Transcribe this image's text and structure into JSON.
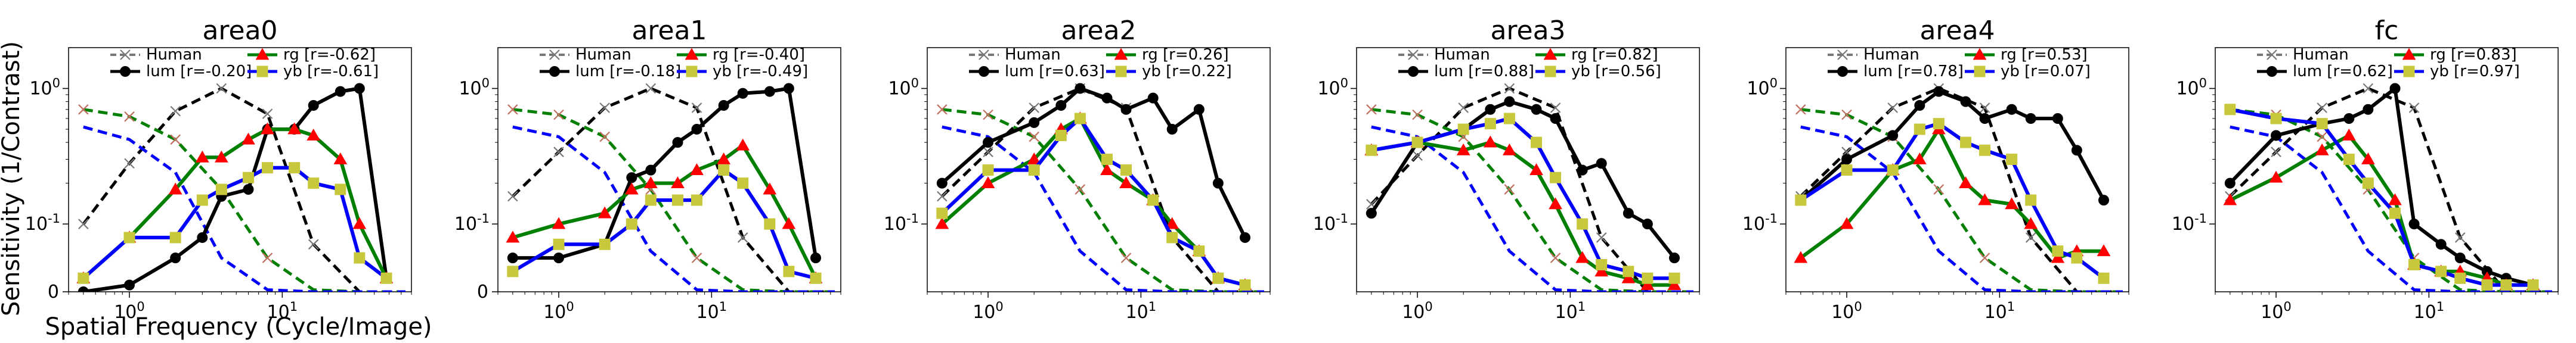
{
  "figure": {
    "ylabel": "Sensitivity (1/Contrast)",
    "xlabel": "Spatial Frequency (Cycle/Image)",
    "colors": {
      "human": "#777777",
      "lum": "#000000",
      "rg": "#007f00",
      "yb": "#0000ff",
      "rg_marker": "#ff0000",
      "yb_marker": "#c8c83c"
    }
  },
  "chart_data": [
    {
      "type": "line",
      "title": "area0",
      "xscale": "log",
      "yscale": "symlog",
      "xlim": [
        0.4,
        70
      ],
      "ylim": [
        0,
        2
      ],
      "x_ticks": [
        "10^0",
        "10^1"
      ],
      "y_ticks": [
        "0",
        "10^-1",
        "10^0"
      ],
      "legend": {
        "placement": "top",
        "entries": [
          "Human",
          "lum [r=-0.20]",
          "rg [r=-0.62]",
          "yb [r=-0.61]"
        ]
      },
      "human": {
        "x": [
          0.5,
          1,
          2,
          4,
          8,
          16,
          32,
          64
        ],
        "lum": [
          0.1,
          0.28,
          0.68,
          1.0,
          0.65,
          0.07,
          0.0,
          0.0
        ],
        "rg": [
          0.7,
          0.62,
          0.42,
          0.18,
          0.05,
          0.003,
          0.0,
          0.0
        ],
        "yb": [
          0.52,
          0.42,
          0.24,
          0.05,
          0.003,
          0.0,
          0.0,
          0.0
        ]
      },
      "series": [
        {
          "name": "lum",
          "x": [
            0.5,
            1,
            2,
            3,
            4,
            6,
            8,
            12,
            16,
            24,
            32,
            48
          ],
          "y": [
            0.0,
            0.01,
            0.05,
            0.08,
            0.16,
            0.18,
            0.5,
            0.5,
            0.75,
            0.95,
            1.0,
            0.02
          ]
        },
        {
          "name": "rg",
          "x": [
            0.5,
            1,
            2,
            3,
            4,
            6,
            8,
            12,
            16,
            24,
            32,
            48
          ],
          "y": [
            0.02,
            0.08,
            0.18,
            0.31,
            0.31,
            0.42,
            0.5,
            0.5,
            0.45,
            0.3,
            0.1,
            0.02
          ]
        },
        {
          "name": "yb",
          "x": [
            0.5,
            1,
            2,
            3,
            4,
            6,
            8,
            12,
            16,
            24,
            32,
            48
          ],
          "y": [
            0.02,
            0.08,
            0.08,
            0.15,
            0.18,
            0.22,
            0.26,
            0.26,
            0.2,
            0.18,
            0.05,
            0.02
          ]
        }
      ]
    },
    {
      "type": "line",
      "title": "area1",
      "xscale": "log",
      "yscale": "symlog",
      "xlim": [
        0.4,
        70
      ],
      "ylim": [
        0,
        2
      ],
      "x_ticks": [
        "10^0",
        "10^1"
      ],
      "y_ticks": [
        "0",
        "10^-1",
        "10^0"
      ],
      "legend": {
        "placement": "top",
        "entries": [
          "Human",
          "lum [r=-0.18]",
          "rg [r=-0.40]",
          "yb [r=-0.49]"
        ]
      },
      "human": {
        "x": [
          0.5,
          1,
          2,
          4,
          8,
          16,
          32,
          64
        ],
        "lum": [
          0.16,
          0.34,
          0.72,
          1.0,
          0.72,
          0.08,
          0.0,
          0.0
        ],
        "rg": [
          0.7,
          0.64,
          0.44,
          0.18,
          0.05,
          0.003,
          0.0,
          0.0
        ],
        "yb": [
          0.52,
          0.44,
          0.24,
          0.06,
          0.003,
          0.0,
          0.0,
          0.0
        ]
      },
      "series": [
        {
          "name": "lum",
          "x": [
            0.5,
            1,
            2,
            3,
            4,
            6,
            8,
            12,
            16,
            24,
            32,
            48
          ],
          "y": [
            0.05,
            0.05,
            0.07,
            0.22,
            0.25,
            0.4,
            0.5,
            0.75,
            0.92,
            0.95,
            1.0,
            0.05
          ]
        },
        {
          "name": "rg",
          "x": [
            0.5,
            1,
            2,
            3,
            4,
            6,
            8,
            12,
            16,
            24,
            32,
            48
          ],
          "y": [
            0.08,
            0.1,
            0.12,
            0.18,
            0.2,
            0.2,
            0.25,
            0.3,
            0.38,
            0.18,
            0.1,
            0.02
          ]
        },
        {
          "name": "yb",
          "x": [
            0.5,
            1,
            2,
            3,
            4,
            6,
            8,
            12,
            16,
            24,
            32,
            48
          ],
          "y": [
            0.03,
            0.07,
            0.07,
            0.1,
            0.15,
            0.15,
            0.15,
            0.25,
            0.2,
            0.1,
            0.03,
            0.02
          ]
        }
      ]
    },
    {
      "type": "line",
      "title": "area2",
      "xscale": "log",
      "yscale": "symlog",
      "xlim": [
        0.4,
        70
      ],
      "ylim": [
        0,
        2
      ],
      "x_ticks": [
        "10^0",
        "10^1"
      ],
      "y_ticks": [
        "10^-1",
        "10^0"
      ],
      "legend": {
        "placement": "top",
        "entries": [
          "Human",
          "lum [r=0.63]",
          "rg [r=0.26]",
          "yb [r=0.22]"
        ]
      },
      "human": {
        "x": [
          0.5,
          1,
          2,
          4,
          8,
          16,
          32,
          64
        ],
        "lum": [
          0.16,
          0.34,
          0.72,
          1.0,
          0.72,
          0.08,
          0.0,
          0.0
        ],
        "rg": [
          0.7,
          0.64,
          0.44,
          0.18,
          0.05,
          0.003,
          0.0,
          0.0
        ],
        "yb": [
          0.52,
          0.44,
          0.24,
          0.06,
          0.003,
          0.0,
          0.0,
          0.0
        ]
      },
      "series": [
        {
          "name": "lum",
          "x": [
            0.5,
            1,
            2,
            3,
            4,
            6,
            8,
            12,
            16,
            24,
            32,
            48
          ],
          "y": [
            0.2,
            0.4,
            0.56,
            0.75,
            1.0,
            0.85,
            0.7,
            0.85,
            0.5,
            0.7,
            0.2,
            0.08
          ]
        },
        {
          "name": "rg",
          "x": [
            0.5,
            1,
            2,
            3,
            4,
            6,
            8,
            12,
            16,
            24,
            32,
            48
          ],
          "y": [
            0.1,
            0.2,
            0.3,
            0.5,
            0.6,
            0.25,
            0.2,
            0.15,
            0.1,
            0.06,
            0.02,
            0.01
          ]
        },
        {
          "name": "yb",
          "x": [
            0.5,
            1,
            2,
            3,
            4,
            6,
            8,
            12,
            16,
            24,
            32,
            48
          ],
          "y": [
            0.12,
            0.25,
            0.25,
            0.45,
            0.6,
            0.3,
            0.25,
            0.15,
            0.08,
            0.06,
            0.02,
            0.01
          ]
        }
      ]
    },
    {
      "type": "line",
      "title": "area3",
      "xscale": "log",
      "yscale": "symlog",
      "xlim": [
        0.4,
        70
      ],
      "ylim": [
        0,
        2
      ],
      "x_ticks": [
        "10^0",
        "10^1"
      ],
      "y_ticks": [
        "10^-1",
        "10^0"
      ],
      "legend": {
        "placement": "top",
        "entries": [
          "Human",
          "lum [r=0.88]",
          "rg [r=0.82]",
          "yb [r=0.56]"
        ]
      },
      "human": {
        "x": [
          0.5,
          1,
          2,
          4,
          8,
          16,
          32,
          64
        ],
        "lum": [
          0.14,
          0.32,
          0.72,
          1.0,
          0.72,
          0.08,
          0.0,
          0.0
        ],
        "rg": [
          0.7,
          0.64,
          0.44,
          0.18,
          0.05,
          0.003,
          0.0,
          0.0
        ],
        "yb": [
          0.52,
          0.44,
          0.24,
          0.06,
          0.003,
          0.0,
          0.0,
          0.0
        ]
      },
      "series": [
        {
          "name": "lum",
          "x": [
            0.5,
            1,
            2,
            3,
            4,
            6,
            8,
            12,
            16,
            24,
            32,
            48
          ],
          "y": [
            0.12,
            0.4,
            0.5,
            0.7,
            0.8,
            0.7,
            0.6,
            0.25,
            0.28,
            0.12,
            0.1,
            0.05
          ]
        },
        {
          "name": "rg",
          "x": [
            0.5,
            1,
            2,
            3,
            4,
            6,
            8,
            12,
            16,
            24,
            32,
            48
          ],
          "y": [
            0.35,
            0.4,
            0.35,
            0.4,
            0.35,
            0.25,
            0.14,
            0.05,
            0.03,
            0.02,
            0.01,
            0.01
          ]
        },
        {
          "name": "yb",
          "x": [
            0.5,
            1,
            2,
            3,
            4,
            6,
            8,
            12,
            16,
            24,
            32,
            48
          ],
          "y": [
            0.35,
            0.4,
            0.5,
            0.55,
            0.6,
            0.4,
            0.22,
            0.1,
            0.04,
            0.03,
            0.02,
            0.02
          ]
        }
      ]
    },
    {
      "type": "line",
      "title": "area4",
      "xscale": "log",
      "yscale": "symlog",
      "xlim": [
        0.4,
        70
      ],
      "ylim": [
        0,
        2
      ],
      "x_ticks": [
        "10^0",
        "10^1"
      ],
      "y_ticks": [
        "10^-1",
        "10^0"
      ],
      "legend": {
        "placement": "top",
        "entries": [
          "Human",
          "lum [r=0.78]",
          "rg [r=0.53]",
          "yb [r=0.07]"
        ]
      },
      "human": {
        "x": [
          0.5,
          1,
          2,
          4,
          8,
          16,
          32,
          64
        ],
        "lum": [
          0.16,
          0.34,
          0.72,
          1.0,
          0.72,
          0.08,
          0.0,
          0.0
        ],
        "rg": [
          0.7,
          0.64,
          0.44,
          0.18,
          0.05,
          0.003,
          0.0,
          0.0
        ],
        "yb": [
          0.52,
          0.44,
          0.24,
          0.06,
          0.003,
          0.0,
          0.0,
          0.0
        ]
      },
      "series": [
        {
          "name": "lum",
          "x": [
            0.5,
            1,
            2,
            3,
            4,
            6,
            8,
            12,
            16,
            24,
            32,
            48
          ],
          "y": [
            0.15,
            0.3,
            0.45,
            0.75,
            0.95,
            0.8,
            0.6,
            0.7,
            0.6,
            0.6,
            0.35,
            0.15
          ]
        },
        {
          "name": "rg",
          "x": [
            0.5,
            1,
            2,
            3,
            4,
            6,
            8,
            12,
            16,
            24,
            32,
            48
          ],
          "y": [
            0.05,
            0.1,
            0.25,
            0.3,
            0.5,
            0.2,
            0.15,
            0.14,
            0.1,
            0.05,
            0.06,
            0.06
          ]
        },
        {
          "name": "yb",
          "x": [
            0.5,
            1,
            2,
            3,
            4,
            6,
            8,
            12,
            16,
            24,
            32,
            48
          ],
          "y": [
            0.15,
            0.25,
            0.25,
            0.5,
            0.55,
            0.4,
            0.35,
            0.3,
            0.15,
            0.06,
            0.05,
            0.02
          ]
        }
      ]
    },
    {
      "type": "line",
      "title": "fc",
      "xscale": "log",
      "yscale": "symlog",
      "xlim": [
        0.4,
        70
      ],
      "ylim": [
        0,
        2
      ],
      "x_ticks": [
        "10^0",
        "10^1"
      ],
      "y_ticks": [
        "10^-1",
        "10^0"
      ],
      "legend": {
        "placement": "top",
        "entries": [
          "Human",
          "lum [r=0.62]",
          "rg [r=0.83]",
          "yb [r=0.97]"
        ]
      },
      "human": {
        "x": [
          0.5,
          1,
          2,
          4,
          8,
          16,
          32,
          64
        ],
        "lum": [
          0.16,
          0.34,
          0.72,
          1.0,
          0.72,
          0.08,
          0.0,
          0.0
        ],
        "rg": [
          0.7,
          0.64,
          0.44,
          0.18,
          0.05,
          0.003,
          0.0,
          0.0
        ],
        "yb": [
          0.52,
          0.44,
          0.24,
          0.06,
          0.003,
          0.0,
          0.0,
          0.0
        ]
      },
      "series": [
        {
          "name": "lum",
          "x": [
            0.5,
            1,
            2,
            3,
            4,
            6,
            8,
            12,
            16,
            24,
            32,
            48
          ],
          "y": [
            0.2,
            0.45,
            0.55,
            0.6,
            0.7,
            1.0,
            0.1,
            0.07,
            0.05,
            0.03,
            0.02,
            0.01
          ]
        },
        {
          "name": "rg",
          "x": [
            0.5,
            1,
            2,
            3,
            4,
            6,
            8,
            12,
            16,
            24,
            32,
            48
          ],
          "y": [
            0.15,
            0.22,
            0.35,
            0.45,
            0.3,
            0.15,
            0.04,
            0.03,
            0.03,
            0.02,
            0.01,
            0.01
          ]
        },
        {
          "name": "yb",
          "x": [
            0.5,
            1,
            2,
            3,
            4,
            6,
            8,
            12,
            16,
            24,
            32,
            48
          ],
          "y": [
            0.7,
            0.6,
            0.55,
            0.3,
            0.2,
            0.12,
            0.04,
            0.03,
            0.02,
            0.01,
            0.01,
            0.01
          ]
        }
      ]
    }
  ]
}
